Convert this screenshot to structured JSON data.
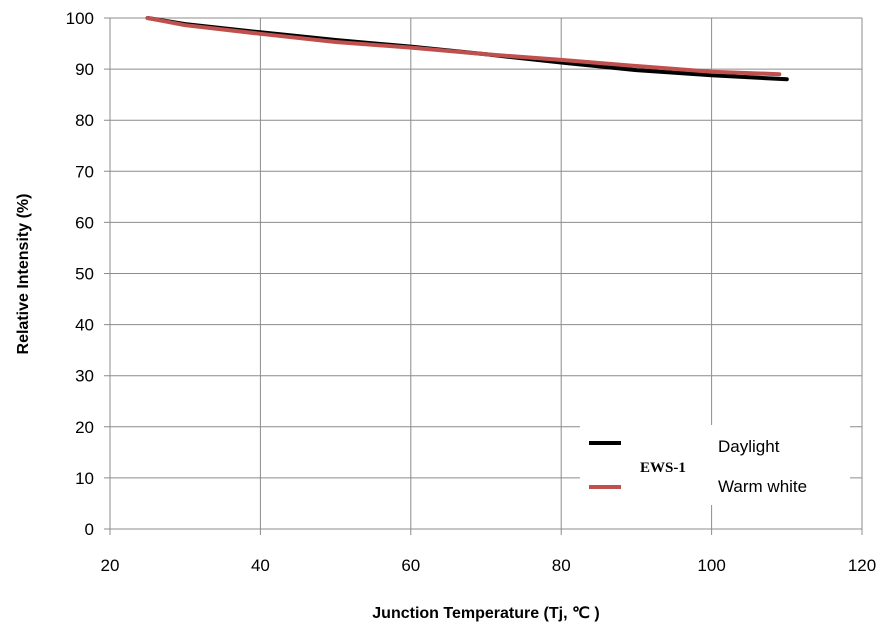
{
  "chart_data": {
    "type": "line",
    "title": "",
    "xlabel": "Junction Temperature (Tj, ℃ )",
    "ylabel": "Relative Intensity (%)",
    "xlim": [
      20,
      120
    ],
    "ylim": [
      0,
      100
    ],
    "xticks": [
      "20",
      "40",
      "60",
      "80",
      "100",
      "120"
    ],
    "yticks": [
      "0",
      "10",
      "20",
      "30",
      "40",
      "50",
      "60",
      "70",
      "80",
      "90",
      "100"
    ],
    "grid": true,
    "legend_position": "bottom-right",
    "legend_label": "EWS-1",
    "series": [
      {
        "name": "Daylight",
        "color": "#000000",
        "x": [
          25,
          30,
          40,
          50,
          60,
          70,
          80,
          90,
          100,
          110
        ],
        "y": [
          100,
          98.8,
          97.2,
          95.7,
          94.4,
          92.9,
          91.3,
          89.8,
          88.8,
          88
        ]
      },
      {
        "name": "Warm white",
        "color": "#c0504d",
        "x": [
          25,
          30,
          40,
          50,
          60,
          70,
          80,
          90,
          100,
          109
        ],
        "y": [
          100,
          98.6,
          96.9,
          95.3,
          94.2,
          92.9,
          91.8,
          90.6,
          89.5,
          89
        ]
      }
    ]
  }
}
